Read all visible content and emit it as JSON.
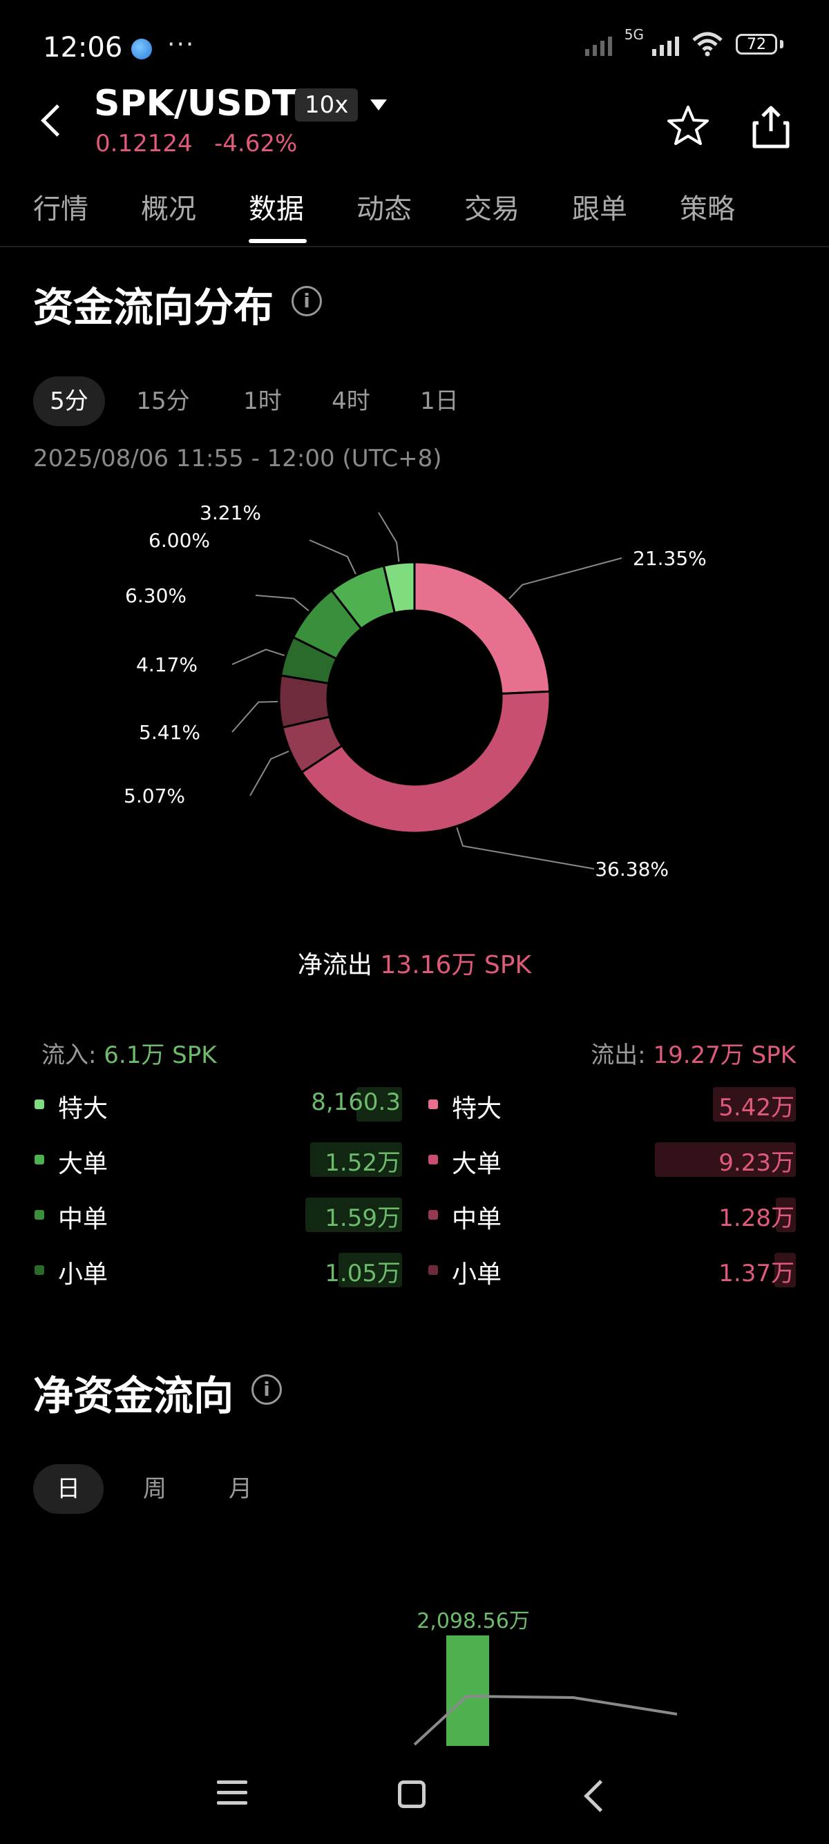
{
  "status_bar": {
    "time": "12:06",
    "more": "···",
    "network": "5G",
    "battery": "72"
  },
  "header": {
    "pair": "SPK/USDT",
    "leverage": "10x",
    "price": "0.12124",
    "change": "-4.62%"
  },
  "tabs": [
    "行情",
    "概况",
    "数据",
    "动态",
    "交易",
    "跟单",
    "策略"
  ],
  "active_tab": "数据",
  "flow_section": {
    "title": "资金流向分布",
    "intervals": [
      "5分",
      "15分",
      "1时",
      "4时",
      "1日"
    ],
    "active_interval": "5分",
    "range": "2025/08/06 11:55 - 12:00 (UTC+8)",
    "net_label": "净流出",
    "net_value": "13.16万 SPK",
    "inflow_label": "流入:",
    "inflow_value": "6.1万 SPK",
    "outflow_label": "流出:",
    "outflow_value": "19.27万 SPK",
    "inflow_items": [
      {
        "name": "特大",
        "value": "8,160.3",
        "color": "#7fdc7f",
        "fill": 0.47
      },
      {
        "name": "大单",
        "value": "1.52万",
        "color": "#4fb04f",
        "fill": 0.95
      },
      {
        "name": "中单",
        "value": "1.59万",
        "color": "#3a8f3a",
        "fill": 1.0
      },
      {
        "name": "小单",
        "value": "1.05万",
        "color": "#2a6a2a",
        "fill": 0.66
      }
    ],
    "outflow_items": [
      {
        "name": "特大",
        "value": "5.42万",
        "color": "#e8708f",
        "fill": 0.59
      },
      {
        "name": "大单",
        "value": "9.23万",
        "color": "#c94f70",
        "fill": 1.0
      },
      {
        "name": "中单",
        "value": "1.28万",
        "color": "#943b52",
        "fill": 0.14
      },
      {
        "name": "小单",
        "value": "1.37万",
        "color": "#6e2b3b",
        "fill": 0.15
      }
    ]
  },
  "chart_data": [
    {
      "type": "pie",
      "slices": [
        {
          "label": "21.35%",
          "value": 21.35,
          "color": "#e8708f"
        },
        {
          "label": "36.38%",
          "value": 36.38,
          "color": "#c94f70"
        },
        {
          "label": "5.07%",
          "value": 5.07,
          "color": "#943b52"
        },
        {
          "label": "5.41%",
          "value": 5.41,
          "color": "#6e2b3b"
        },
        {
          "label": "4.17%",
          "value": 4.17,
          "color": "#2a6a2a"
        },
        {
          "label": "6.30%",
          "value": 6.3,
          "color": "#3a8f3a"
        },
        {
          "label": "6.00%",
          "value": 6.0,
          "color": "#4fb04f"
        },
        {
          "label": "3.21%",
          "value": 3.21,
          "color": "#7fdc7f"
        }
      ]
    },
    {
      "type": "bar",
      "bar_label": "2,098.56万",
      "bar_value": 2098.56,
      "bar_color": "#4fb04f",
      "line_color": "#8a8a8a"
    }
  ],
  "net_section": {
    "title": "净资金流向",
    "periods": [
      "日",
      "周",
      "月"
    ],
    "active_period": "日"
  }
}
